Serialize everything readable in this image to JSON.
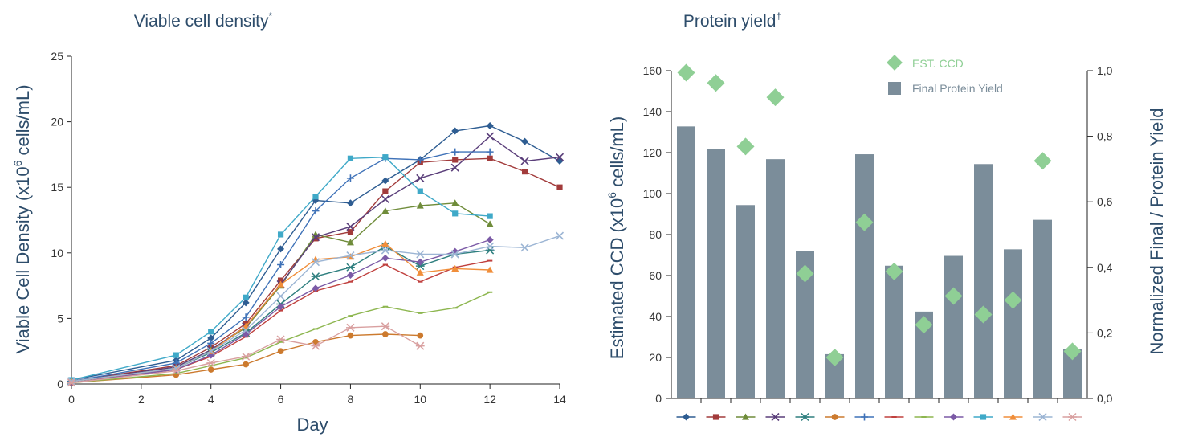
{
  "left_chart": {
    "title": "Viable cell density",
    "title_mark": "*",
    "ylabel_pre": "Viable Cell Density (x10",
    "ylabel_sup": "6",
    "ylabel_post": " cells/mL)",
    "xlabel": "Day"
  },
  "right_chart": {
    "title": "Protein yield",
    "title_mark": "†",
    "ylabel_pre": "Estimated CCD (x10",
    "ylabel_sup": "6",
    "ylabel_post": " cells/mL)",
    "y2label": "Normalized Final / Protein Yield",
    "legend_ccd": "EST. CCD",
    "legend_bar": "Final Protein Yield"
  },
  "chart_data": [
    {
      "type": "line",
      "title": "Viable cell density",
      "xlabel": "Day",
      "ylabel": "Viable Cell Density (x10^6 cells/mL)",
      "xlim": [
        0,
        14
      ],
      "ylim": [
        0,
        25
      ],
      "xticks": [
        "0",
        "2",
        "4",
        "6",
        "8",
        "10",
        "12",
        "14"
      ],
      "yticks": [
        "0",
        "5",
        "10",
        "15",
        "20",
        "25"
      ],
      "grid": false,
      "series": [
        {
          "color": "#2e5d92",
          "marker": "diamond",
          "points": [
            [
              0,
              0.3
            ],
            [
              3,
              1.8
            ],
            [
              4,
              3.5
            ],
            [
              5,
              6.2
            ],
            [
              6,
              10.3
            ],
            [
              7,
              14
            ],
            [
              8,
              13.8
            ],
            [
              9,
              15.5
            ],
            [
              10,
              17.1
            ],
            [
              11,
              19.3
            ],
            [
              12,
              19.7
            ],
            [
              13,
              18.5
            ],
            [
              14,
              17
            ]
          ]
        },
        {
          "color": "#a23b3b",
          "marker": "square",
          "points": [
            [
              0,
              0.2
            ],
            [
              3,
              1.4
            ],
            [
              4,
              2.8
            ],
            [
              5,
              4.6
            ],
            [
              6,
              7.9
            ],
            [
              7,
              11.1
            ],
            [
              8,
              11.6
            ],
            [
              9,
              14.7
            ],
            [
              10,
              16.9
            ],
            [
              11,
              17.1
            ],
            [
              12,
              17.2
            ],
            [
              13,
              16.2
            ],
            [
              14,
              15
            ]
          ]
        },
        {
          "color": "#6f8c3a",
          "marker": "triangle",
          "points": [
            [
              0,
              0.2
            ],
            [
              3,
              1.2
            ],
            [
              4,
              2.6
            ],
            [
              5,
              4.3
            ],
            [
              6,
              7.5
            ],
            [
              7,
              11.4
            ],
            [
              8,
              10.8
            ],
            [
              9,
              13.2
            ],
            [
              10,
              13.6
            ],
            [
              11,
              13.8
            ],
            [
              12,
              12.2
            ]
          ]
        },
        {
          "color": "#5a3e7a",
          "marker": "x",
          "points": [
            [
              0,
              0.2
            ],
            [
              3,
              1.3
            ],
            [
              4,
              2.6
            ],
            [
              5,
              4.4
            ],
            [
              6,
              7.6
            ],
            [
              7,
              11.2
            ],
            [
              8,
              12
            ],
            [
              9,
              14.1
            ],
            [
              10,
              15.7
            ],
            [
              11,
              16.5
            ],
            [
              12,
              18.9
            ],
            [
              13,
              17
            ],
            [
              14,
              17.3
            ]
          ]
        },
        {
          "color": "#2f7f7f",
          "marker": "star",
          "points": [
            [
              0,
              0.2
            ],
            [
              3,
              1.2
            ],
            [
              4,
              2.4
            ],
            [
              5,
              3.9
            ],
            [
              6,
              6.1
            ],
            [
              7,
              8.2
            ],
            [
              8,
              8.9
            ],
            [
              9,
              10.5
            ],
            [
              10,
              9
            ],
            [
              11,
              9.9
            ],
            [
              12,
              10.2
            ]
          ]
        },
        {
          "color": "#cc7a2e",
          "marker": "circle",
          "points": [
            [
              0,
              0.1
            ],
            [
              3,
              0.7
            ],
            [
              4,
              1.1
            ],
            [
              5,
              1.5
            ],
            [
              6,
              2.5
            ],
            [
              7,
              3.2
            ],
            [
              8,
              3.7
            ],
            [
              9,
              3.8
            ],
            [
              10,
              3.7
            ]
          ]
        },
        {
          "color": "#3f72b8",
          "marker": "plus",
          "points": [
            [
              0,
              0.2
            ],
            [
              3,
              1.6
            ],
            [
              4,
              3.1
            ],
            [
              5,
              5.1
            ],
            [
              6,
              9.1
            ],
            [
              7,
              13.2
            ],
            [
              8,
              15.7
            ],
            [
              9,
              17.2
            ],
            [
              10,
              17.1
            ],
            [
              11,
              17.7
            ],
            [
              12,
              17.7
            ]
          ]
        },
        {
          "color": "#c0403e",
          "marker": "dash",
          "points": [
            [
              0,
              0.1
            ],
            [
              3,
              1.1
            ],
            [
              4,
              2.1
            ],
            [
              5,
              3.6
            ],
            [
              6,
              5.6
            ],
            [
              7,
              7.1
            ],
            [
              8,
              7.8
            ],
            [
              9,
              9.1
            ],
            [
              10,
              7.8
            ],
            [
              11,
              8.9
            ],
            [
              12,
              9.4
            ]
          ]
        },
        {
          "color": "#8db64f",
          "marker": "dash",
          "points": [
            [
              0,
              0.1
            ],
            [
              3,
              0.8
            ],
            [
              4,
              1.4
            ],
            [
              5,
              2
            ],
            [
              6,
              3.2
            ],
            [
              7,
              4.2
            ],
            [
              8,
              5.2
            ],
            [
              9,
              5.9
            ],
            [
              10,
              5.4
            ],
            [
              11,
              5.8
            ],
            [
              12,
              7
            ]
          ]
        },
        {
          "color": "#7b5aa6",
          "marker": "diamond",
          "points": [
            [
              0,
              0.1
            ],
            [
              3,
              1.1
            ],
            [
              4,
              2.2
            ],
            [
              5,
              3.8
            ],
            [
              6,
              5.9
            ],
            [
              7,
              7.3
            ],
            [
              8,
              8.3
            ],
            [
              9,
              9.6
            ],
            [
              10,
              9.3
            ],
            [
              11,
              10.1
            ],
            [
              12,
              11
            ]
          ]
        },
        {
          "color": "#3fa9c8",
          "marker": "square",
          "points": [
            [
              0,
              0.3
            ],
            [
              3,
              2.2
            ],
            [
              4,
              4
            ],
            [
              5,
              6.6
            ],
            [
              6,
              11.4
            ],
            [
              7,
              14.3
            ],
            [
              8,
              17.2
            ],
            [
              9,
              17.3
            ],
            [
              10,
              14.7
            ],
            [
              11,
              13
            ],
            [
              12,
              12.8
            ]
          ]
        },
        {
          "color": "#f08e3a",
          "marker": "triangle",
          "points": [
            [
              0,
              0.2
            ],
            [
              3,
              1.2
            ],
            [
              4,
              2.5
            ],
            [
              5,
              4.4
            ],
            [
              6,
              7.6
            ],
            [
              7,
              9.5
            ],
            [
              8,
              9.7
            ],
            [
              9,
              10.7
            ],
            [
              10,
              8.5
            ],
            [
              11,
              8.8
            ],
            [
              12,
              8.7
            ]
          ]
        },
        {
          "color": "#9cb5d4",
          "marker": "x",
          "points": [
            [
              0,
              0.2
            ],
            [
              3,
              1.2
            ],
            [
              4,
              2.5
            ],
            [
              5,
              4.1
            ],
            [
              6,
              6.7
            ],
            [
              7,
              9.3
            ],
            [
              8,
              9.8
            ],
            [
              9,
              10.2
            ],
            [
              10,
              9.9
            ],
            [
              11,
              9.9
            ],
            [
              12,
              10.5
            ],
            [
              13,
              10.4
            ],
            [
              14,
              11.3
            ]
          ]
        },
        {
          "color": "#d9a0a0",
          "marker": "star",
          "points": [
            [
              0,
              0.1
            ],
            [
              3,
              1
            ],
            [
              4,
              1.6
            ],
            [
              5,
              2.1
            ],
            [
              6,
              3.4
            ],
            [
              7,
              2.9
            ],
            [
              8,
              4.3
            ],
            [
              9,
              4.4
            ],
            [
              10,
              2.9
            ]
          ]
        }
      ]
    },
    {
      "type": "bar",
      "title": "Protein yield",
      "ylabel": "Estimated CCD (x10^6 cells/mL)",
      "y2label": "Normalized Final / Protein Yield",
      "ylim": [
        0,
        160
      ],
      "y2lim": [
        0,
        1.0
      ],
      "yticks": [
        "0",
        "20",
        "40",
        "60",
        "80",
        "100",
        "120",
        "140",
        "160"
      ],
      "y2ticks": [
        "0,0",
        "0,2",
        "0,4",
        "0,6",
        "0,8",
        "1,0"
      ],
      "legend_position": "top-right",
      "series": [
        {
          "name": "Final Protein Yield",
          "axis": "right",
          "color": "#7b8d9a",
          "values": [
            0.83,
            0.76,
            0.59,
            0.73,
            0.45,
            0.135,
            0.745,
            0.405,
            0.265,
            0.435,
            0.715,
            0.455,
            0.545,
            0.15
          ]
        },
        {
          "name": "EST. CCD",
          "axis": "left",
          "color": "#8fcf95",
          "marker": "diamond",
          "values": [
            159,
            154,
            123,
            147,
            61,
            20,
            86,
            62,
            36,
            50,
            41,
            48,
            116,
            23
          ]
        }
      ],
      "category_marker_colors": [
        "#2e5d92",
        "#a23b3b",
        "#6f8c3a",
        "#5a3e7a",
        "#2f7f7f",
        "#cc7a2e",
        "#3f72b8",
        "#c0403e",
        "#8db64f",
        "#7b5aa6",
        "#3fa9c8",
        "#f08e3a",
        "#9cb5d4",
        "#d9a0a0"
      ],
      "category_markers": [
        "diamond",
        "square",
        "triangle",
        "x",
        "star",
        "circle",
        "plus",
        "dash",
        "dash",
        "diamond",
        "square",
        "triangle",
        "x",
        "star"
      ]
    }
  ]
}
